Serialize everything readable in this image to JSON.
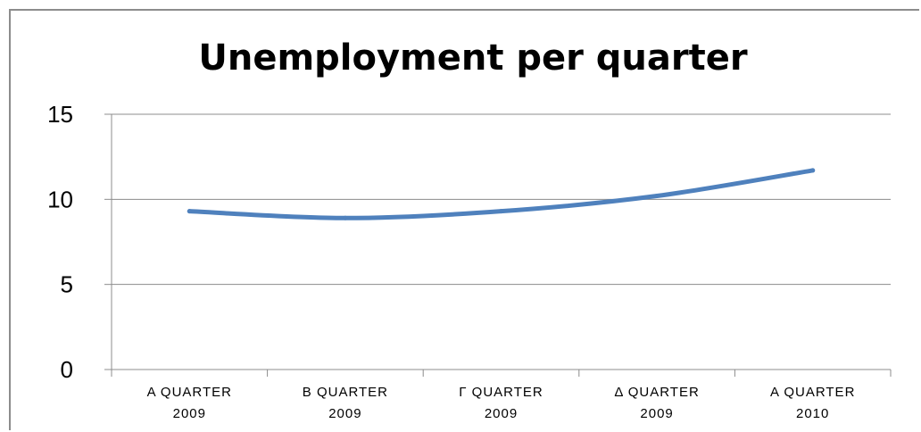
{
  "chart_data": {
    "type": "line",
    "title": "Unemployment per quarter",
    "xlabel": "",
    "ylabel": "",
    "categories": [
      [
        "A QUARTER",
        "2009"
      ],
      [
        "B QUARTER",
        "2009"
      ],
      [
        "Γ QUARTER",
        "2009"
      ],
      [
        "Δ QUARTER",
        "2009"
      ],
      [
        "A QUARTER",
        "2010"
      ]
    ],
    "series": [
      {
        "values": [
          9.3,
          8.9,
          9.3,
          10.2,
          11.7
        ],
        "color": "#4f81bd"
      }
    ],
    "ylim": [
      0,
      15
    ],
    "yticks": [
      0,
      5,
      10,
      15
    ],
    "grid": true,
    "legend": "none"
  }
}
